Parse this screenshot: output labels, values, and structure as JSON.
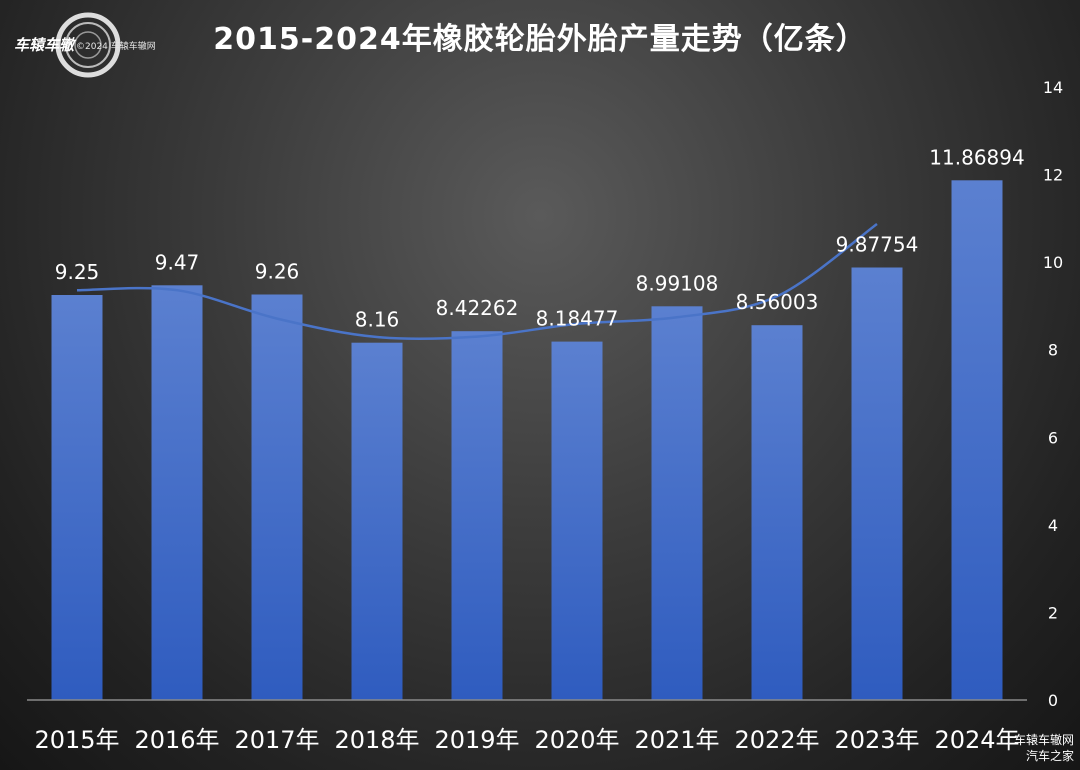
{
  "watermark": {
    "logo_text": "车辕车辙",
    "logo_sub": "©2024 车辕车辙网",
    "site": "车辕车辙网",
    "source": "汽车之家"
  },
  "chart_data": {
    "type": "bar",
    "title": "2015-2024年橡胶轮胎外胎产量走势（亿条）",
    "categories": [
      "2015年",
      "2016年",
      "2017年",
      "2018年",
      "2019年",
      "2020年",
      "2021年",
      "2022年",
      "2023年",
      "2024年"
    ],
    "series": [
      {
        "values": [
          9.25,
          9.47,
          9.26,
          8.16,
          8.42262,
          8.18477,
          8.99108,
          8.56003,
          9.87754,
          11.86894
        ],
        "labels": [
          "9.25",
          "9.47",
          "9.26",
          "8.16",
          "8.42262",
          "8.18477",
          "8.99108",
          "8.56003",
          "9.87754",
          "11.86894"
        ]
      }
    ],
    "trendline": {
      "type": "line",
      "x": [
        "2015年",
        "2016年",
        "2017年",
        "2018年",
        "2019年",
        "2020年",
        "2021年",
        "2022年",
        "2023年"
      ],
      "values": [
        9.36,
        9.36,
        8.71,
        8.29,
        8.3,
        8.59,
        8.74,
        9.22,
        10.87
      ]
    },
    "ylim": [
      0,
      14
    ],
    "yticks": [
      0,
      2,
      4,
      6,
      8,
      10,
      12,
      14
    ],
    "y_axis_position": "right",
    "grid": false,
    "legend": "none",
    "colors": {
      "bar_top": "#5b80d0",
      "bar_bottom": "#2f5cbf",
      "line": "#4a74c8",
      "label": "#ffffff",
      "tick": "#ffffff"
    }
  }
}
